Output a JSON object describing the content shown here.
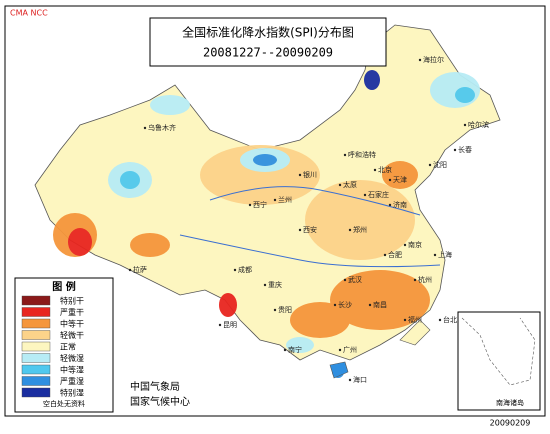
{
  "header": {
    "watermark": "CMA NCC",
    "title": "全国标准化降水指数(SPI)分布图",
    "period": "20081227--20090209"
  },
  "legend": {
    "title": "图 例",
    "items": [
      {
        "label": "特别干",
        "color": "#8b1a1a"
      },
      {
        "label": "严重干",
        "color": "#e8251f"
      },
      {
        "label": "中等干",
        "color": "#f5963c"
      },
      {
        "label": "轻微干",
        "color": "#fcd38a"
      },
      {
        "label": "正常",
        "color": "#fdf6c0"
      },
      {
        "label": "轻微湿",
        "color": "#b7ecf5"
      },
      {
        "label": "中等湿",
        "color": "#4fc8ee"
      },
      {
        "label": "严重湿",
        "color": "#2f8fe0"
      },
      {
        "label": "特别湿",
        "color": "#1a2ea0"
      }
    ],
    "note": "空白处无资料"
  },
  "footer": {
    "agency": "中国气象局",
    "center": "国家气候中心",
    "date": "20090209"
  },
  "inset": {
    "label": "南海诸岛"
  },
  "cities": [
    "乌鲁木齐",
    "海拉尔",
    "哈尔滨",
    "长春",
    "沈阳",
    "呼和浩特",
    "北京",
    "天津",
    "太原",
    "石家庄",
    "济南",
    "银川",
    "兰州",
    "西宁",
    "西安",
    "郑州",
    "南京",
    "合肥",
    "上海",
    "拉萨",
    "成都",
    "重庆",
    "武汉",
    "杭州",
    "长沙",
    "南昌",
    "福州",
    "台北",
    "贵阳",
    "昆明",
    "南宁",
    "广州",
    "海口"
  ]
}
